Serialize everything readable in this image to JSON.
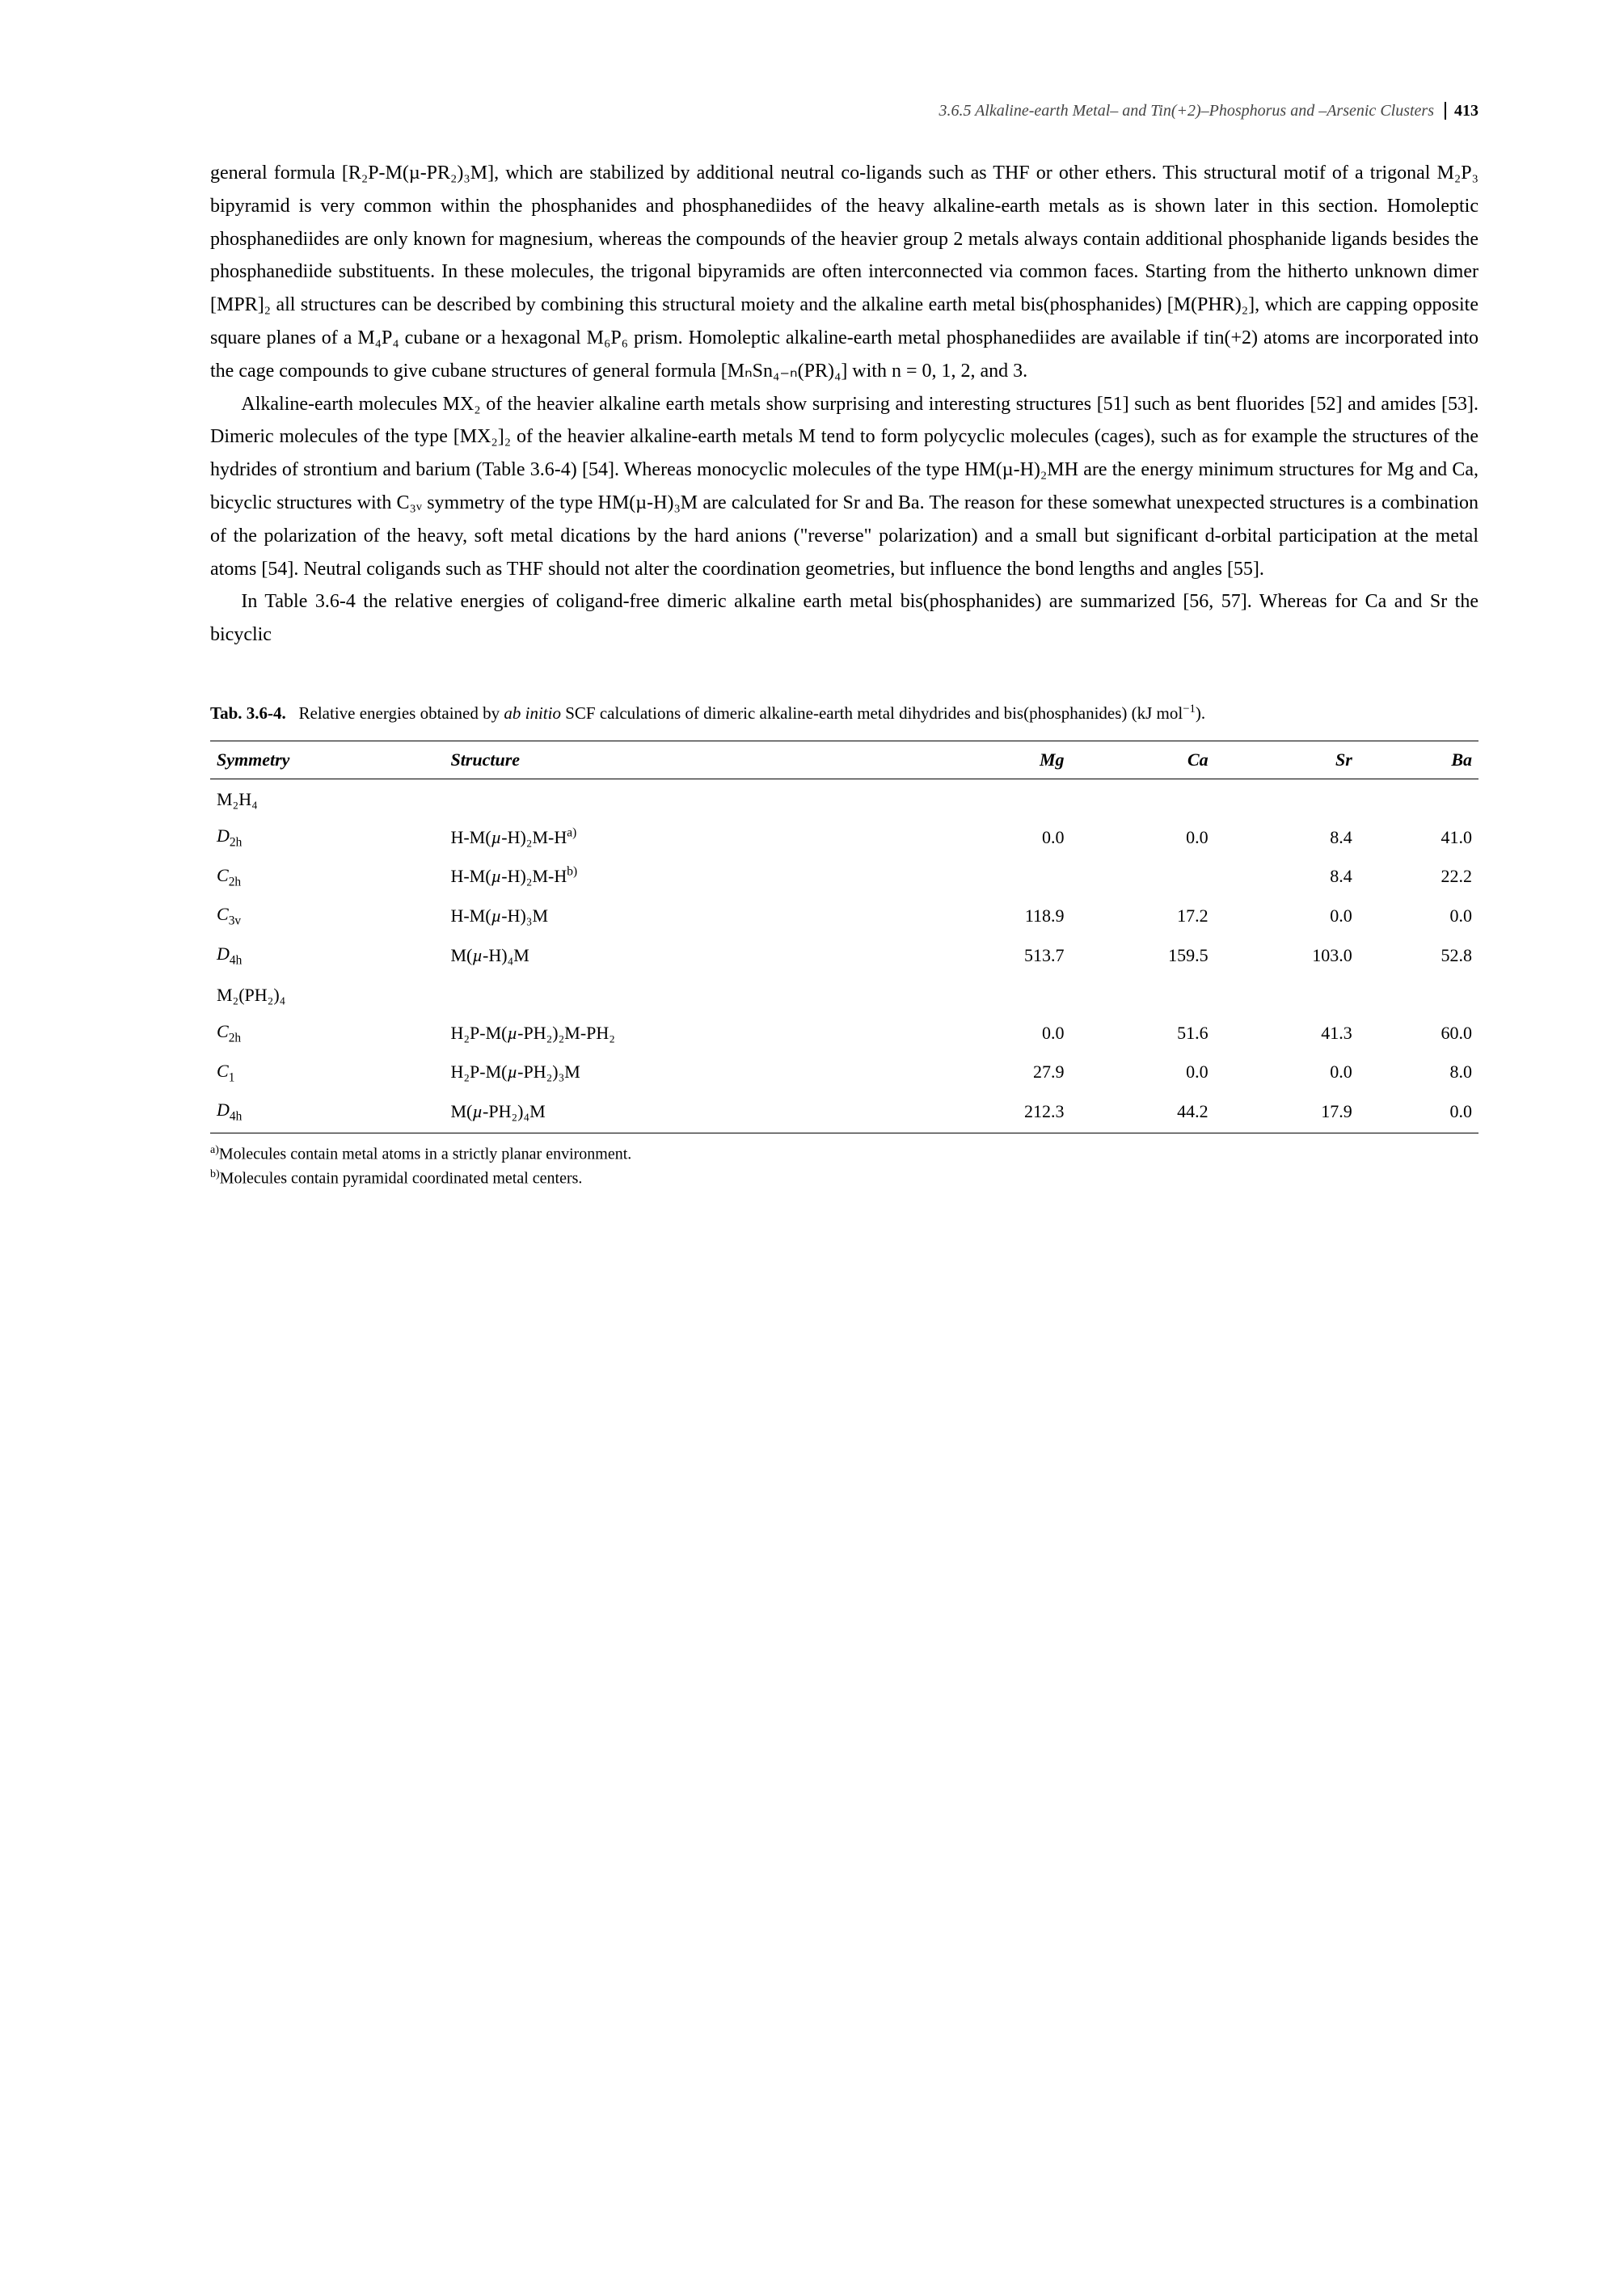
{
  "header": {
    "running_title": "3.6.5 Alkaline-earth Metal– and Tin(+2)–Phosphorus and –Arsenic Clusters",
    "page_number": "413"
  },
  "paragraphs": {
    "p1": "general formula [R₂P-M(µ-PR₂)₃M], which are stabilized by additional neutral co-ligands such as THF or other ethers. This structural motif of a trigonal M₂P₃ bipyramid is very common within the phosphanides and phosphanediides of the heavy alkaline-earth metals as is shown later in this section. Homoleptic phosphanediides are only known for magnesium, whereas the compounds of the heavier group 2 metals always contain additional phosphanide ligands besides the phosphanediide substituents. In these molecules, the trigonal bipyramids are often interconnected via common faces. Starting from the hitherto unknown dimer [MPR]₂ all structures can be described by combining this structural moiety and the alkaline earth metal bis(phosphanides) [M(PHR)₂], which are capping opposite square planes of a M₄P₄ cubane or a hexagonal M₆P₆ prism. Homoleptic alkaline-earth metal phosphanediides are available if tin(+2) atoms are incorporated into the cage compounds to give cubane structures of general formula [MₙSn₄₋ₙ(PR)₄] with n = 0, 1, 2, and 3.",
    "p2": "Alkaline-earth molecules MX₂ of the heavier alkaline earth metals show surprising and interesting structures [51] such as bent fluorides [52] and amides [53]. Dimeric molecules of the type [MX₂]₂ of the heavier alkaline-earth metals M tend to form polycyclic molecules (cages), such as for example the structures of the hydrides of strontium and barium (Table 3.6-4) [54]. Whereas monocyclic molecules of the type HM(µ-H)₂MH are the energy minimum structures for Mg and Ca, bicyclic structures with C₃ᵥ symmetry of the type HM(µ-H)₃M are calculated for Sr and Ba. The reason for these somewhat unexpected structures is a combination of the polarization of the heavy, soft metal dications by the hard anions (\"reverse\" polarization) and a small but significant d-orbital participation at the metal atoms [54]. Neutral coligands such as THF should not alter the coordination geometries, but influence the bond lengths and angles [55].",
    "p3": "In Table 3.6-4 the relative energies of coligand-free dimeric alkaline earth metal bis(phosphanides) are summarized [56, 57]. Whereas for Ca and Sr the bicyclic"
  },
  "table": {
    "caption_label": "Tab. 3.6-4.",
    "caption_text": "Relative energies obtained by ab initio SCF calculations of dimeric alkaline-earth metal dihydrides and bis(phosphanides) (kJ mol⁻¹).",
    "columns": [
      "Symmetry",
      "Structure",
      "Mg",
      "Ca",
      "Sr",
      "Ba"
    ],
    "group1_label": "M₂H₄",
    "rows1": [
      {
        "sym_html": "<span class='it'>D</span><sub>2h</sub>",
        "struct_html": "H-M(<span class='it'>µ</span>-H)₂M-H<sup>a)</sup>",
        "mg": "0.0",
        "ca": "0.0",
        "sr": "8.4",
        "ba": "41.0"
      },
      {
        "sym_html": "<span class='it'>C</span><sub>2h</sub>",
        "struct_html": "H-M(<span class='it'>µ</span>-H)₂M-H<sup>b)</sup>",
        "mg": "",
        "ca": "",
        "sr": "8.4",
        "ba": "22.2"
      },
      {
        "sym_html": "<span class='it'>C</span><sub>3v</sub>",
        "struct_html": "H-M(<span class='it'>µ</span>-H)₃M",
        "mg": "118.9",
        "ca": "17.2",
        "sr": "0.0",
        "ba": "0.0"
      },
      {
        "sym_html": "<span class='it'>D</span><sub>4h</sub>",
        "struct_html": "M(<span class='it'>µ</span>-H)₄M",
        "mg": "513.7",
        "ca": "159.5",
        "sr": "103.0",
        "ba": "52.8"
      }
    ],
    "group2_label": "M₂(PH₂)₄",
    "rows2": [
      {
        "sym_html": "<span class='it'>C</span><sub>2h</sub>",
        "struct_html": "H₂P-M(<span class='it'>µ</span>-PH₂)₂M-PH₂",
        "mg": "0.0",
        "ca": "51.6",
        "sr": "41.3",
        "ba": "60.0"
      },
      {
        "sym_html": "<span class='it'>C</span><sub>1</sub>",
        "struct_html": "H₂P-M(<span class='it'>µ</span>-PH₂)₃M",
        "mg": "27.9",
        "ca": "0.0",
        "sr": "0.0",
        "ba": "8.0"
      },
      {
        "sym_html": "<span class='it'>D</span><sub>4h</sub>",
        "struct_html": "M(<span class='it'>µ</span>-PH₂)₄M",
        "mg": "212.3",
        "ca": "44.2",
        "sr": "17.9",
        "ba": "0.0"
      }
    ],
    "footnote_a": "Molecules contain metal atoms in a strictly planar environment.",
    "footnote_b": "Molecules contain pyramidal coordinated metal centers."
  }
}
